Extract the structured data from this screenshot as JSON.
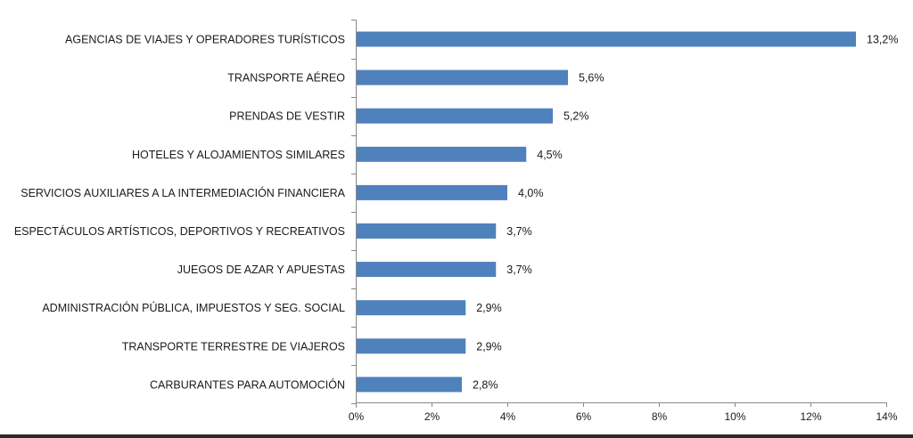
{
  "chart_data": {
    "type": "bar",
    "orientation": "horizontal",
    "categories": [
      "AGENCIAS DE VIAJES Y OPERADORES TURÍSTICOS",
      "TRANSPORTE AÉREO",
      "PRENDAS DE VESTIR",
      "HOTELES  Y ALOJAMIENTOS SIMILARES",
      "SERVICIOS AUXILIARES A LA INTERMEDIACIÓN FINANCIERA",
      "ESPECTÁCULOS ARTÍSTICOS, DEPORTIVOS Y RECREATIVOS",
      "JUEGOS DE AZAR Y APUESTAS",
      "ADMINISTRACIÓN PÚBLICA, IMPUESTOS Y SEG. SOCIAL",
      "TRANSPORTE TERRESTRE DE VIAJEROS",
      "CARBURANTES PARA AUTOMOCIÓN"
    ],
    "values": [
      13.2,
      5.6,
      5.2,
      4.5,
      4.0,
      3.7,
      3.7,
      2.9,
      2.9,
      2.8
    ],
    "data_labels": [
      "13,2%",
      "5,6%",
      "5,2%",
      "4,5%",
      "4,0%",
      "3,7%",
      "3,7%",
      "2,9%",
      "2,9%",
      "2,8%"
    ],
    "xlim": [
      0,
      14
    ],
    "x_ticks": [
      0,
      2,
      4,
      6,
      8,
      10,
      12,
      14
    ],
    "x_tick_labels": [
      "0%",
      "2%",
      "4%",
      "6%",
      "8%",
      "10%",
      "12%",
      "14%"
    ],
    "title": "",
    "xlabel": "",
    "ylabel": "",
    "grid": false,
    "bar_color": "#4f81bd",
    "axis_color": "#888888"
  }
}
